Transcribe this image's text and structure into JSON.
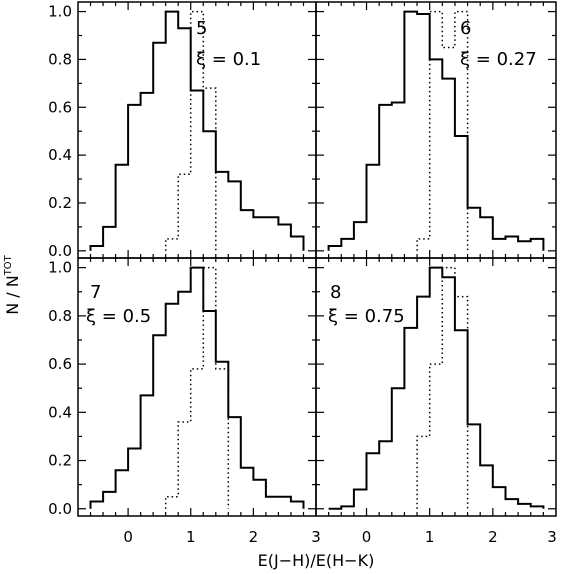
{
  "chart_data": {
    "type": "histogram",
    "xlabel": "E(J−H)/E(H−K)",
    "ylabel": "N / N",
    "ylabel_superscript": "TOT",
    "x_ticks": [
      "0",
      "1",
      "2",
      "3"
    ],
    "x_tick_values": [
      0,
      1,
      2,
      3
    ],
    "y_ticks": [
      "0.0",
      "0.2",
      "0.4",
      "0.6",
      "0.8",
      "1.0"
    ],
    "y_tick_values": [
      0.0,
      0.2,
      0.4,
      0.6,
      0.8,
      1.0
    ],
    "xlim": [
      -0.8,
      3.0
    ],
    "ylim": [
      -0.03,
      1.04
    ],
    "panels": [
      {
        "number": "5",
        "xi": "ξ  =  0.1",
        "solid": {
          "edges": [
            -0.6,
            -0.4,
            -0.2,
            0.0,
            0.2,
            0.4,
            0.6,
            0.8,
            1.0,
            1.2,
            1.4,
            1.6,
            1.8,
            2.0,
            2.2,
            2.4,
            2.6,
            2.8
          ],
          "values": [
            0.02,
            0.1,
            0.36,
            0.61,
            0.66,
            0.87,
            1.0,
            0.93,
            0.67,
            0.5,
            0.33,
            0.29,
            0.17,
            0.14,
            0.14,
            0.11,
            0.06
          ]
        },
        "dotted": {
          "edges": [
            0.6,
            0.8,
            1.0,
            1.2,
            1.4
          ],
          "values": [
            0.05,
            0.32,
            1.0,
            0.68
          ]
        }
      },
      {
        "number": "6",
        "xi": "ξ  =  0.27",
        "solid": {
          "edges": [
            -0.6,
            -0.4,
            -0.2,
            0.0,
            0.2,
            0.4,
            0.6,
            0.8,
            1.0,
            1.2,
            1.4,
            1.6,
            1.8,
            2.0,
            2.2,
            2.4,
            2.6,
            2.8
          ],
          "values": [
            0.02,
            0.05,
            0.12,
            0.36,
            0.61,
            0.62,
            1.0,
            0.99,
            0.8,
            0.72,
            0.48,
            0.18,
            0.14,
            0.05,
            0.06,
            0.04,
            0.05
          ]
        },
        "dotted": {
          "edges": [
            0.8,
            1.0,
            1.2,
            1.4,
            1.6
          ],
          "values": [
            0.05,
            1.0,
            0.85,
            1.0
          ]
        }
      },
      {
        "number": "7",
        "xi": "ξ  =  0.5",
        "solid": {
          "edges": [
            -0.6,
            -0.4,
            -0.2,
            0.0,
            0.2,
            0.4,
            0.6,
            0.8,
            1.0,
            1.2,
            1.4,
            1.6,
            1.8,
            2.0,
            2.2,
            2.4,
            2.6,
            2.8
          ],
          "values": [
            0.03,
            0.07,
            0.16,
            0.25,
            0.47,
            0.72,
            0.85,
            0.9,
            1.0,
            0.82,
            0.61,
            0.38,
            0.17,
            0.12,
            0.05,
            0.05,
            0.03
          ]
        },
        "dotted": {
          "edges": [
            0.6,
            0.8,
            1.0,
            1.2,
            1.4,
            1.6
          ],
          "values": [
            0.05,
            0.36,
            0.58,
            1.0,
            0.58
          ]
        }
      },
      {
        "number": "8",
        "xi": "ξ  =  0.75",
        "solid": {
          "edges": [
            -0.6,
            -0.4,
            -0.2,
            0.0,
            0.2,
            0.4,
            0.6,
            0.8,
            1.0,
            1.2,
            1.4,
            1.6,
            1.8,
            2.0,
            2.2,
            2.4,
            2.6,
            2.8
          ],
          "values": [
            0.0,
            0.01,
            0.08,
            0.23,
            0.28,
            0.5,
            0.75,
            0.88,
            1.0,
            0.96,
            0.74,
            0.35,
            0.18,
            0.09,
            0.04,
            0.02,
            0.01
          ]
        },
        "dotted": {
          "edges": [
            0.8,
            1.0,
            1.2,
            1.4,
            1.6
          ],
          "values": [
            0.3,
            0.6,
            1.0,
            0.88
          ]
        }
      }
    ]
  }
}
